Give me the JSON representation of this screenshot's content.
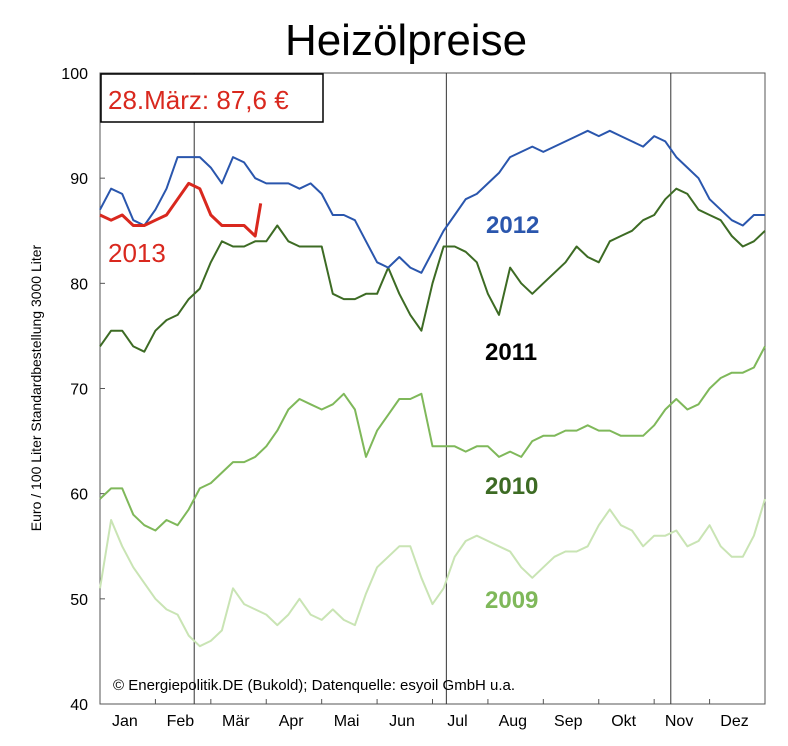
{
  "chart_data": {
    "type": "line",
    "title": "Heizölpreise",
    "xlabel": "",
    "ylabel": "Euro / 100 Liter Standardbestellung 3000 Liter",
    "ylim": [
      40,
      100
    ],
    "yticks": [
      "40",
      "50",
      "60",
      "70",
      "80",
      "90",
      "100"
    ],
    "months": [
      "Jan",
      "Feb",
      "Mär",
      "Apr",
      "Mai",
      "Jun",
      "Jul",
      "Aug",
      "Sep",
      "Okt",
      "Nov",
      "Dez"
    ],
    "annotation": "28.März: 87,6 €",
    "credit": "© Energiepolitik.DE (Bukold); Datenquelle: esyoil GmbH u.a.",
    "grid": "vertical lines at quarter boundaries",
    "series": [
      {
        "name": "2009",
        "color": "#c9e4b4",
        "x": [
          0,
          0.2,
          0.4,
          0.6,
          0.8,
          1.0,
          1.2,
          1.4,
          1.6,
          1.8,
          2.0,
          2.2,
          2.4,
          2.6,
          2.8,
          3.0,
          3.2,
          3.4,
          3.6,
          3.8,
          4.0,
          4.2,
          4.4,
          4.6,
          4.8,
          5.0,
          5.2,
          5.4,
          5.6,
          5.8,
          6.0,
          6.2,
          6.4,
          6.6,
          6.8,
          7.0,
          7.2,
          7.4,
          7.6,
          7.8,
          8.0,
          8.2,
          8.4,
          8.6,
          8.8,
          9.0,
          9.2,
          9.4,
          9.6,
          9.8,
          10.0,
          10.2,
          10.4,
          10.6,
          10.8,
          11.0,
          11.2,
          11.4,
          11.6,
          11.8,
          12.0
        ],
        "values": [
          51,
          57.5,
          55,
          53,
          51.5,
          50,
          49,
          48.5,
          46.5,
          45.5,
          46,
          47,
          51,
          49.5,
          49,
          48.5,
          47.5,
          48.5,
          50,
          48.5,
          48,
          49,
          48,
          47.5,
          50.5,
          53,
          54,
          55,
          55,
          52,
          49.5,
          51,
          54,
          55.5,
          56,
          55.5,
          55,
          54.5,
          53,
          52,
          53,
          54,
          54.5,
          54.5,
          55,
          57,
          58.5,
          57,
          56.5,
          55,
          56,
          56,
          56.5,
          55,
          55.5,
          57,
          55,
          54,
          54,
          56,
          59.5
        ]
      },
      {
        "name": "2010",
        "color": "#7fb85a",
        "x": [
          0,
          0.2,
          0.4,
          0.6,
          0.8,
          1.0,
          1.2,
          1.4,
          1.6,
          1.8,
          2.0,
          2.2,
          2.4,
          2.6,
          2.8,
          3.0,
          3.2,
          3.4,
          3.6,
          3.8,
          4.0,
          4.2,
          4.4,
          4.6,
          4.8,
          5.0,
          5.2,
          5.4,
          5.6,
          5.8,
          6.0,
          6.2,
          6.4,
          6.6,
          6.8,
          7.0,
          7.2,
          7.4,
          7.6,
          7.8,
          8.0,
          8.2,
          8.4,
          8.6,
          8.8,
          9.0,
          9.2,
          9.4,
          9.6,
          9.8,
          10.0,
          10.2,
          10.4,
          10.6,
          10.8,
          11.0,
          11.2,
          11.4,
          11.6,
          11.8,
          12.0
        ],
        "values": [
          59.5,
          60.5,
          60.5,
          58,
          57,
          56.5,
          57.5,
          57,
          58.5,
          60.5,
          61,
          62,
          63,
          63,
          63.5,
          64.5,
          66,
          68,
          69,
          68.5,
          68,
          68.5,
          69.5,
          68,
          63.5,
          66,
          67.5,
          69,
          69,
          69.5,
          64.5,
          64.5,
          64.5,
          64,
          64.5,
          64.5,
          63.5,
          64,
          63.5,
          65,
          65.5,
          65.5,
          66,
          66,
          66.5,
          66,
          66,
          65.5,
          65.5,
          65.5,
          66.5,
          68,
          69,
          68,
          68.5,
          70,
          71,
          71.5,
          71.5,
          72,
          74
        ]
      },
      {
        "name": "2011",
        "color": "#3d6b24",
        "x": [
          0,
          0.2,
          0.4,
          0.6,
          0.8,
          1.0,
          1.2,
          1.4,
          1.6,
          1.8,
          2.0,
          2.2,
          2.4,
          2.6,
          2.8,
          3.0,
          3.2,
          3.4,
          3.6,
          3.8,
          4.0,
          4.2,
          4.4,
          4.6,
          4.8,
          5.0,
          5.2,
          5.4,
          5.6,
          5.8,
          6.0,
          6.2,
          6.4,
          6.6,
          6.8,
          7.0,
          7.2,
          7.4,
          7.6,
          7.8,
          8.0,
          8.2,
          8.4,
          8.6,
          8.8,
          9.0,
          9.2,
          9.4,
          9.6,
          9.8,
          10.0,
          10.2,
          10.4,
          10.6,
          10.8,
          11.0,
          11.2,
          11.4,
          11.6,
          11.8,
          12.0
        ],
        "values": [
          74,
          75.5,
          75.5,
          74,
          73.5,
          75.5,
          76.5,
          77,
          78.5,
          79.5,
          82,
          84,
          83.5,
          83.5,
          84,
          84,
          85.5,
          84,
          83.5,
          83.5,
          83.5,
          79,
          78.5,
          78.5,
          79,
          79,
          81.5,
          79,
          77,
          75.5,
          80,
          83.5,
          83.5,
          83,
          82,
          79,
          77,
          81.5,
          80,
          79,
          80,
          81,
          82,
          83.5,
          82.5,
          82,
          84,
          84.5,
          85,
          86,
          86.5,
          88,
          89,
          88.5,
          87,
          86.5,
          86,
          84.5,
          83.5,
          84,
          85
        ]
      },
      {
        "name": "2012",
        "color": "#2a56ad",
        "x": [
          0,
          0.2,
          0.4,
          0.6,
          0.8,
          1.0,
          1.2,
          1.4,
          1.6,
          1.8,
          2.0,
          2.2,
          2.4,
          2.6,
          2.8,
          3.0,
          3.2,
          3.4,
          3.6,
          3.8,
          4.0,
          4.2,
          4.4,
          4.6,
          4.8,
          5.0,
          5.2,
          5.4,
          5.6,
          5.8,
          6.0,
          6.2,
          6.4,
          6.6,
          6.8,
          7.0,
          7.2,
          7.4,
          7.6,
          7.8,
          8.0,
          8.2,
          8.4,
          8.6,
          8.8,
          9.0,
          9.2,
          9.4,
          9.6,
          9.8,
          10.0,
          10.2,
          10.4,
          10.6,
          10.8,
          11.0,
          11.2,
          11.4,
          11.6,
          11.8,
          12.0
        ],
        "values": [
          87,
          89,
          88.5,
          86,
          85.5,
          87,
          89,
          92,
          92,
          92,
          91,
          89.5,
          92,
          91.5,
          90,
          89.5,
          89.5,
          89.5,
          89,
          89.5,
          88.5,
          86.5,
          86.5,
          86,
          84,
          82,
          81.5,
          82.5,
          81.5,
          81,
          83,
          85,
          86.5,
          88,
          88.5,
          89.5,
          90.5,
          92,
          92.5,
          93,
          92.5,
          93,
          93.5,
          94,
          94.5,
          94,
          94.5,
          94,
          93.5,
          93,
          94,
          93.5,
          92,
          91,
          90,
          88,
          87,
          86,
          85.5,
          86.5,
          86.5
        ]
      },
      {
        "name": "2013",
        "color": "#d9281e",
        "x": [
          0,
          0.2,
          0.4,
          0.6,
          0.8,
          1.0,
          1.2,
          1.4,
          1.6,
          1.8,
          2.0,
          2.2,
          2.4,
          2.6,
          2.8,
          2.9
        ],
        "values": [
          86.5,
          86,
          86.5,
          85.5,
          85.5,
          86,
          86.5,
          88,
          89.5,
          89,
          86.5,
          85.5,
          85.5,
          85.5,
          84.5,
          87.6
        ]
      }
    ]
  },
  "labels": {
    "s2009": "2009",
    "s2010": "2010",
    "s2011": "2011",
    "s2012": "2012",
    "s2013": "2013"
  }
}
